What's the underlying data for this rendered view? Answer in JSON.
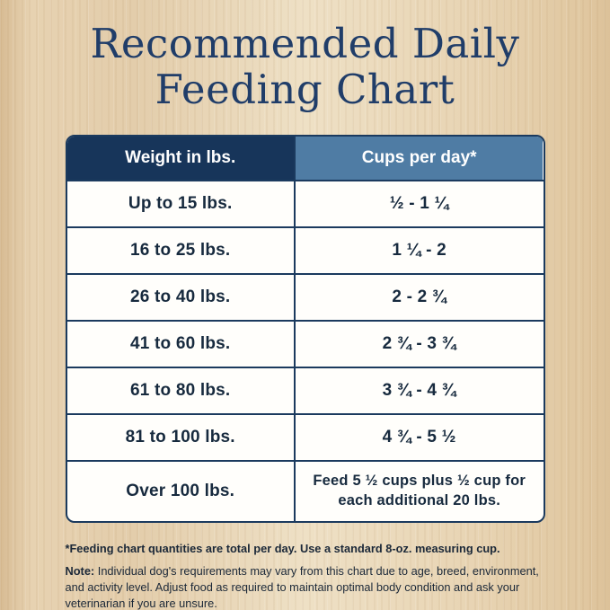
{
  "page": {
    "title_line1": "Recommended Daily",
    "title_line2": "Feeding Chart"
  },
  "table": {
    "headers": [
      "Weight in lbs.",
      "Cups per day*"
    ],
    "rows": [
      {
        "weight": "Up to 15 lbs.",
        "cups": "½ - 1 ¼"
      },
      {
        "weight": "16 to 25 lbs.",
        "cups": "1 ¼ - 2"
      },
      {
        "weight": "26 to 40 lbs.",
        "cups": "2 - 2 ¾"
      },
      {
        "weight": "41 to 60 lbs.",
        "cups": "2 ¾ - 3 ¾"
      },
      {
        "weight": "61 to 80 lbs.",
        "cups": "3 ¾ - 4 ¾"
      },
      {
        "weight": "81 to 100 lbs.",
        "cups": "4 ¾ - 5 ½"
      },
      {
        "weight": "Over 100 lbs.",
        "cups": "Feed 5 ½ cups plus ½ cup for each additional 20 lbs."
      }
    ]
  },
  "footnotes": {
    "line1": "*Feeding chart quantities are total per day. Use a standard 8-oz. measuring cup.",
    "note_label": "Note:",
    "note_body": " Individual dog's requirements may vary from this chart due to age, breed, environment, and activity level. Adjust food as required to maintain optimal body condition and ask your veterinarian if you are unsure."
  },
  "colors": {
    "title": "#203d69",
    "header_left_bg": "#17355a",
    "header_right_bg": "#4f7ca4",
    "table_border": "#1b3a5e",
    "cell_text": "#172a3e",
    "background_wood": "#e7d2b1"
  },
  "chart_data": {
    "type": "table",
    "title": "Recommended Daily Feeding Chart",
    "columns": [
      "Weight in lbs.",
      "Cups per day*"
    ],
    "rows": [
      [
        "Up to 15 lbs.",
        "½ - 1 ¼"
      ],
      [
        "16 to 25 lbs.",
        "1 ¼ - 2"
      ],
      [
        "26 to 40 lbs.",
        "2 - 2 ¾"
      ],
      [
        "41 to 60 lbs.",
        "2 ¾ - 3 ¾"
      ],
      [
        "61 to 80 lbs.",
        "3 ¾ - 4 ¾"
      ],
      [
        "81 to 100 lbs.",
        "4 ¾ - 5 ½"
      ],
      [
        "Over 100 lbs.",
        "Feed 5 ½ cups plus ½ cup for each additional 20 lbs."
      ]
    ],
    "footnotes": [
      "*Feeding chart quantities are total per day. Use a standard 8-oz. measuring cup.",
      "Note: Individual dog's requirements may vary from this chart due to age, breed, environment, and activity level. Adjust food as required to maintain optimal body condition and ask your veterinarian if you are unsure."
    ]
  }
}
